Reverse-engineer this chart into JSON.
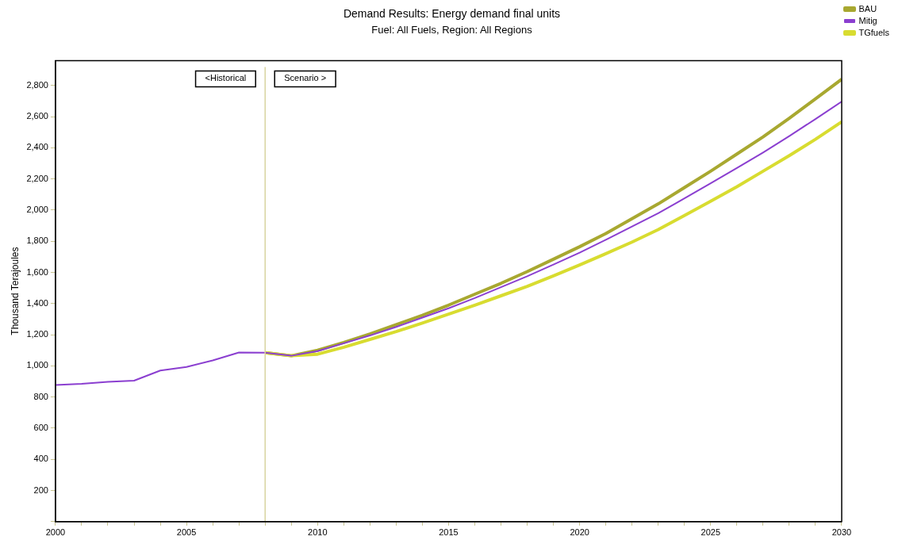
{
  "chart_data": {
    "type": "line",
    "title": "Demand Results: Energy demand final units",
    "subtitle": "Fuel: All Fuels, Region: All Regions",
    "ylabel": "Thousand Terajoules",
    "x": [
      2000,
      2001,
      2002,
      2003,
      2004,
      2005,
      2006,
      2007,
      2008,
      2009,
      2010,
      2011,
      2012,
      2013,
      2014,
      2015,
      2016,
      2017,
      2018,
      2019,
      2020,
      2021,
      2022,
      2023,
      2024,
      2025,
      2026,
      2027,
      2028,
      2029,
      2030
    ],
    "series": [
      {
        "name": "BAU",
        "color": "#a8a830",
        "values": [
          null,
          null,
          null,
          null,
          null,
          null,
          null,
          null,
          1085,
          1065,
          1100,
          1150,
          1205,
          1265,
          1325,
          1390,
          1460,
          1530,
          1605,
          1685,
          1765,
          1850,
          1945,
          2040,
          2145,
          2250,
          2360,
          2470,
          2590,
          2715,
          2840
        ]
      },
      {
        "name": "Mitig",
        "color": "#8b3fd0",
        "values": [
          877,
          885,
          897,
          905,
          970,
          993,
          1035,
          1086,
          1085,
          1065,
          1095,
          1145,
          1195,
          1250,
          1310,
          1370,
          1435,
          1505,
          1575,
          1650,
          1727,
          1810,
          1895,
          1980,
          2075,
          2172,
          2270,
          2370,
          2475,
          2585,
          2697
        ]
      },
      {
        "name": "TGfuels",
        "color": "#d8dc30",
        "values": [
          null,
          null,
          null,
          null,
          null,
          null,
          null,
          null,
          1085,
          1065,
          1075,
          1120,
          1170,
          1220,
          1275,
          1332,
          1390,
          1450,
          1510,
          1578,
          1648,
          1720,
          1795,
          1875,
          1965,
          2057,
          2150,
          2250,
          2350,
          2455,
          2567
        ]
      }
    ],
    "xlim": [
      2000,
      2030
    ],
    "xticks": [
      2000,
      {
        "value": 2001,
        "label": null
      },
      {
        "value": 2002,
        "label": null
      },
      {
        "value": 2003,
        "label": null
      },
      {
        "value": 2004,
        "label": null
      },
      2005,
      {
        "value": 2006,
        "label": null
      },
      {
        "value": 2007,
        "label": null
      },
      {
        "value": 2008,
        "label": null
      },
      {
        "value": 2009,
        "label": null
      },
      2010,
      {
        "value": 2011,
        "label": null
      },
      {
        "value": 2012,
        "label": null
      },
      {
        "value": 2013,
        "label": null
      },
      {
        "value": 2014,
        "label": null
      },
      2015,
      {
        "value": 2016,
        "label": null
      },
      {
        "value": 2017,
        "label": null
      },
      {
        "value": 2018,
        "label": null
      },
      {
        "value": 2019,
        "label": null
      },
      2020,
      {
        "value": 2021,
        "label": null
      },
      {
        "value": 2022,
        "label": null
      },
      {
        "value": 2023,
        "label": null
      },
      {
        "value": 2024,
        "label": null
      },
      2025,
      {
        "value": 2026,
        "label": null
      },
      {
        "value": 2027,
        "label": null
      },
      {
        "value": 2028,
        "label": null
      },
      {
        "value": 2029,
        "label": null
      },
      2030
    ],
    "ylim": [
      0,
      2960
    ],
    "yticks": [
      {
        "value": 0,
        "label": null
      },
      {
        "value": 200,
        "label": "200"
      },
      {
        "value": 400,
        "label": "400"
      },
      {
        "value": 600,
        "label": "600"
      },
      {
        "value": 800,
        "label": "800"
      },
      {
        "value": 1000,
        "label": "1,000"
      },
      {
        "value": 1200,
        "label": "1,200"
      },
      {
        "value": 1400,
        "label": "1,400"
      },
      {
        "value": 1600,
        "label": "1,600"
      },
      {
        "value": 1800,
        "label": "1,800"
      },
      {
        "value": 2000,
        "label": "2,000"
      },
      {
        "value": 2200,
        "label": "2,200"
      },
      {
        "value": 2400,
        "label": "2,400"
      },
      {
        "value": 2600,
        "label": "2,600"
      },
      {
        "value": 2800,
        "label": "2,800"
      }
    ],
    "ref_lines": [
      {
        "axis": "x",
        "value": 2008,
        "color": "#d8d4a0"
      }
    ],
    "annotations": [
      "<Historical",
      "Scenario >"
    ],
    "grid": false,
    "legend": "top right",
    "marker": "none",
    "line_style": "solid"
  }
}
